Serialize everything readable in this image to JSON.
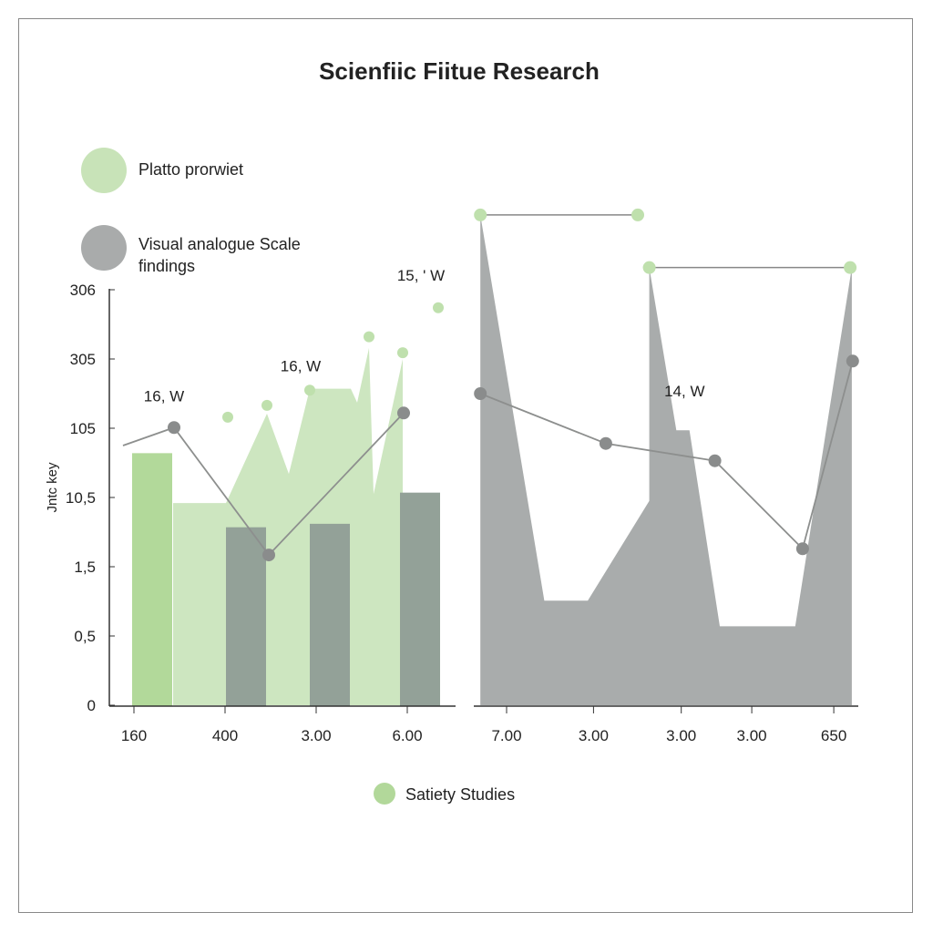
{
  "chart_data": {
    "type": "bar",
    "title": "Scienfiic Fiitue Research",
    "ylabel": "Jntc key",
    "xlabel": "",
    "y_ticks": [
      {
        "level": 0,
        "label": "0"
      },
      {
        "level": 1,
        "label": "0,5"
      },
      {
        "level": 2,
        "label": "1,5"
      },
      {
        "level": 3,
        "label": "10,5"
      },
      {
        "level": 4,
        "label": "105"
      },
      {
        "level": 5,
        "label": "305"
      },
      {
        "level": 6,
        "label": "306"
      }
    ],
    "ylim": [
      0,
      7.1
    ],
    "grid": false,
    "legend": {
      "placement": "top-left",
      "entries": [
        {
          "label": "Platto prorwiet",
          "color": "#c8e3b8"
        },
        {
          "label_lines": [
            "Visual analogue Scale",
            "findings"
          ],
          "color": "#a9abab"
        }
      ],
      "bottom_entry": {
        "label": "Satiety Studies",
        "color": "#b2d89a"
      }
    },
    "colors": {
      "bar_green": "#b2d99a",
      "area_green": "#cde6c0",
      "bar_dark": "#93a198",
      "area_gray": "#a9acac",
      "line_gray": "#8d8f8e",
      "dot_green": "#bfe0ad",
      "dot_gray": "#8a8c8c"
    },
    "panels": [
      {
        "x_ticks": [
          {
            "x": 0,
            "label": "160"
          },
          {
            "x": 1,
            "label": "400"
          },
          {
            "x": 2,
            "label": "3.00"
          },
          {
            "x": 3,
            "label": "6.00"
          }
        ],
        "area": [
          [
            0.43,
            2.92
          ],
          [
            1.01,
            2.92
          ],
          [
            1.46,
            4.21
          ],
          [
            1.7,
            3.34
          ],
          [
            1.93,
            4.57
          ],
          [
            2.38,
            4.57
          ],
          [
            2.45,
            4.37
          ],
          [
            2.58,
            5.16
          ],
          [
            2.63,
            3.05
          ],
          [
            2.95,
            5.0
          ],
          [
            2.95,
            0
          ],
          [
            0.43,
            0
          ]
        ],
        "bars": [
          {
            "x": 0.2,
            "value": 3.64,
            "color": "bar_green"
          },
          {
            "x": 1.23,
            "value": 2.57,
            "color": "bar_dark"
          },
          {
            "x": 2.15,
            "value": 2.62,
            "color": "bar_dark"
          },
          {
            "x": 3.14,
            "value": 3.07,
            "color": "bar_dark"
          }
        ],
        "line": [
          [
            -0.12,
            3.75
          ],
          [
            0.44,
            4.01
          ],
          [
            1.48,
            2.17
          ],
          [
            2.96,
            4.22
          ]
        ],
        "line_markers": [
          [
            0.44,
            4.01
          ],
          [
            1.48,
            2.17
          ],
          [
            2.96,
            4.22
          ]
        ],
        "green_dots": [
          [
            1.03,
            4.16
          ],
          [
            1.46,
            4.33
          ],
          [
            1.93,
            4.55
          ],
          [
            2.58,
            5.32
          ],
          [
            2.95,
            5.09
          ],
          [
            3.34,
            5.74
          ]
        ],
        "annotations": [
          {
            "x": 0.33,
            "y": 4.39,
            "text": "16, W"
          },
          {
            "x": 1.83,
            "y": 4.82,
            "text": "16, W"
          },
          {
            "x": 3.15,
            "y": 6.13,
            "text": "15, ' W"
          }
        ]
      },
      {
        "x_ticks": [
          {
            "x": 0,
            "label": "7.00"
          },
          {
            "x": 1.06,
            "label": "3.00"
          },
          {
            "x": 2.13,
            "label": "3.00"
          },
          {
            "x": 2.99,
            "label": "3.00"
          },
          {
            "x": 3.99,
            "label": "650"
          }
        ],
        "area": [
          [
            -0.32,
            7.08
          ],
          [
            0.46,
            1.51
          ],
          [
            0.99,
            1.51
          ],
          [
            1.74,
            2.95
          ],
          [
            1.74,
            6.32
          ],
          [
            2.07,
            3.97
          ],
          [
            2.23,
            3.97
          ],
          [
            2.6,
            1.14
          ],
          [
            3.52,
            1.14
          ],
          [
            4.21,
            6.32
          ],
          [
            4.21,
            0
          ],
          [
            -0.32,
            0
          ]
        ],
        "green_segments": [
          [
            [
              -0.32,
              7.08
            ],
            [
              1.6,
              7.08
            ]
          ],
          [
            [
              1.74,
              6.32
            ],
            [
              4.19,
              6.32
            ]
          ]
        ],
        "line": [
          [
            -0.32,
            4.5
          ],
          [
            1.21,
            3.78
          ],
          [
            2.54,
            3.53
          ],
          [
            3.61,
            2.26
          ],
          [
            4.22,
            4.97
          ]
        ],
        "annotations": [
          {
            "x": 2.17,
            "y": 4.46,
            "text": "14, W"
          }
        ]
      }
    ]
  }
}
